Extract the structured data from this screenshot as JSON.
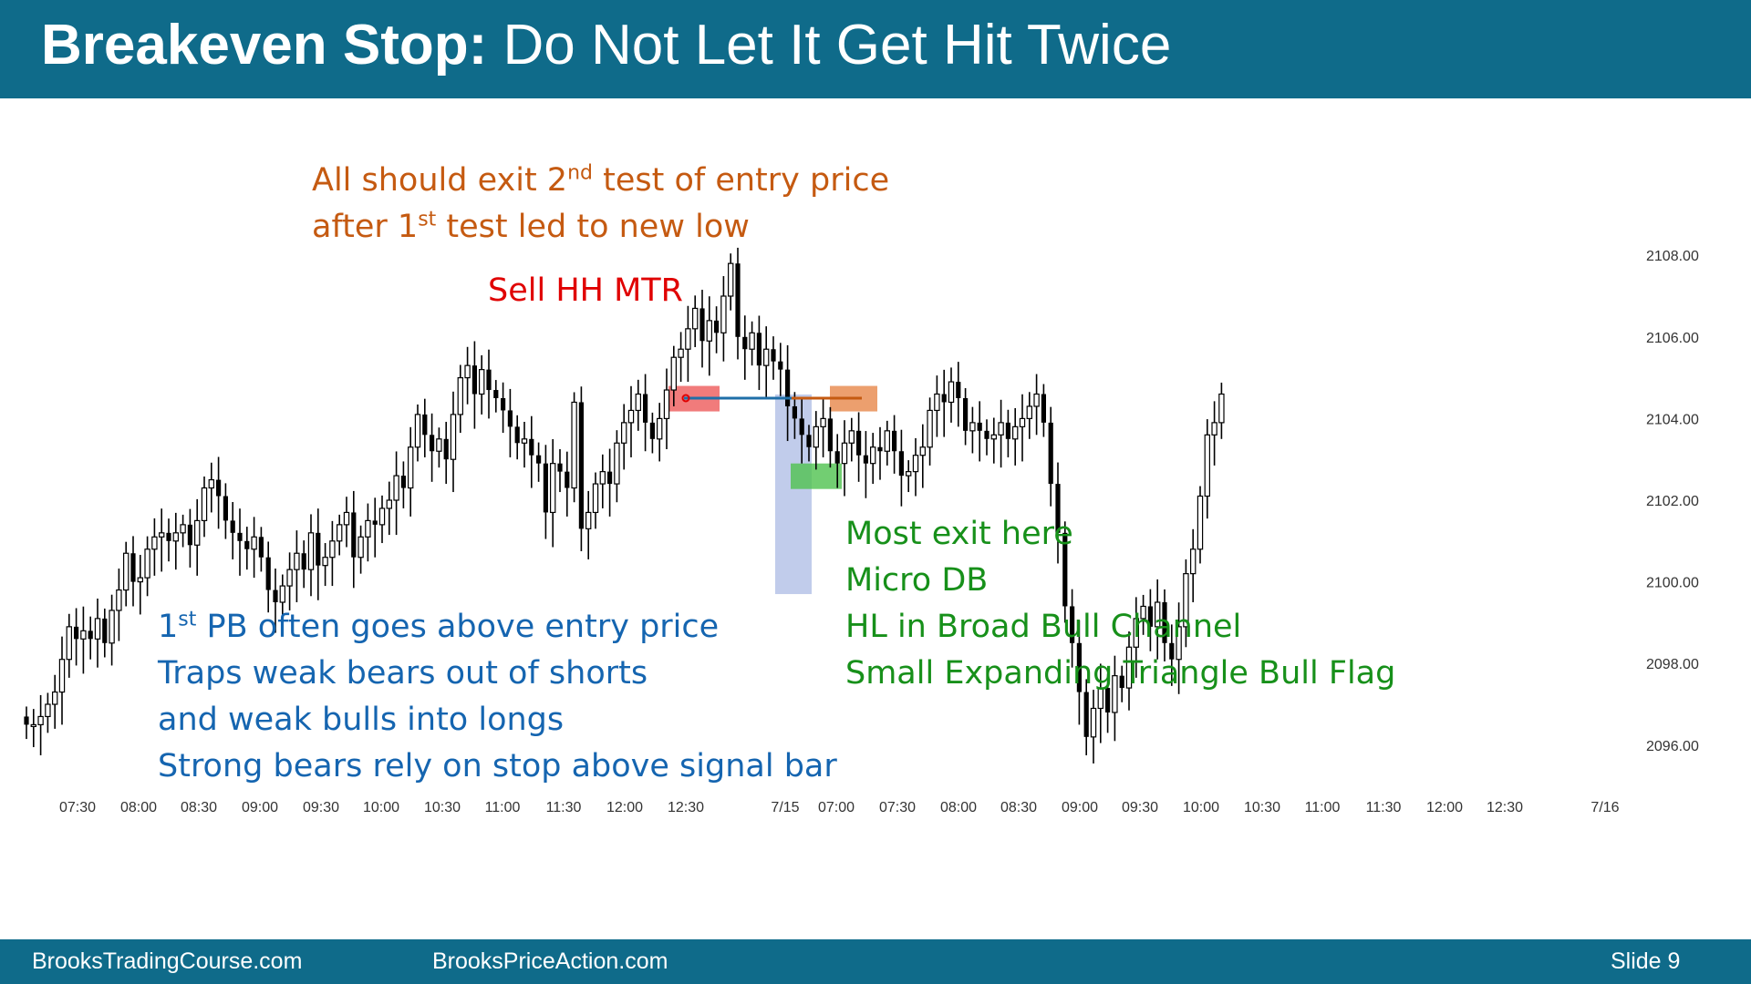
{
  "slide": {
    "title_bold": "Breakeven Stop:",
    "title_rest": "Do Not Let It Get Hit Twice",
    "footer_left": "BrooksTradingCourse.com",
    "footer_mid": "BrooksPriceAction.com",
    "footer_slide": "Slide  9"
  },
  "annotations": {
    "orange": {
      "line1_pre": "All should exit 2",
      "line1_sup": "nd",
      "line1_post": " test of entry price",
      "line2_pre": "after 1",
      "line2_sup": "st",
      "line2_post": " test led to new low"
    },
    "red": "Sell HH MTR",
    "blue": {
      "line1_pre": "1",
      "line1_sup": "st",
      "line1_post": " PB often goes above entry  price",
      "line2": "Traps weak bears out of shorts",
      "line3": "and weak bulls into longs",
      "line4": "Strong bears rely on stop above signal bar"
    },
    "green": {
      "line1": "Most exit here",
      "line2": "Micro DB",
      "line3": "HL in Broad Bull Channel",
      "line4": "Small Expanding Triangle Bull Flag"
    }
  },
  "colors": {
    "header_bg": "#0f6b8a",
    "orange": "#c55a11",
    "red": "#e00000",
    "blue": "#1565b0",
    "green": "#17901a",
    "entry_line": "#1f6fa8"
  },
  "chart_data": {
    "type": "candlestick",
    "y_ticks": [
      "2108.00",
      "2106.00",
      "2104.00",
      "2102.00",
      "2100.00",
      "2098.00",
      "2096.00"
    ],
    "ylim": [
      2094.5,
      2109.5
    ],
    "x_ticks": [
      "07:30",
      "08:00",
      "08:30",
      "09:00",
      "09:30",
      "10:00",
      "10:30",
      "11:00",
      "11:30",
      "12:00",
      "12:30",
      "7/15",
      "07:00",
      "07:30",
      "08:00",
      "08:30",
      "09:00",
      "09:30",
      "10:00",
      "10:30",
      "11:00",
      "11:30",
      "12:00",
      "12:30",
      "7/16"
    ],
    "entry_price": 2104.5,
    "closes": [
      2096.5,
      2096.5,
      2096.7,
      2097.0,
      2097.3,
      2098.1,
      2098.9,
      2098.6,
      2098.8,
      2098.6,
      2099.1,
      2098.5,
      2099.3,
      2099.8,
      2100.7,
      2100.0,
      2100.1,
      2100.8,
      2101.1,
      2101.2,
      2101.0,
      2101.2,
      2101.4,
      2100.9,
      2101.5,
      2102.3,
      2102.5,
      2102.1,
      2101.5,
      2101.2,
      2101.0,
      2100.8,
      2101.1,
      2100.6,
      2099.8,
      2099.5,
      2099.9,
      2100.3,
      2100.7,
      2100.3,
      2101.2,
      2100.4,
      2100.6,
      2101.0,
      2101.4,
      2101.7,
      2100.6,
      2101.1,
      2101.5,
      2101.4,
      2101.8,
      2102.0,
      2102.6,
      2102.3,
      2103.3,
      2104.1,
      2103.6,
      2103.2,
      2103.5,
      2103.0,
      2104.1,
      2105.0,
      2105.3,
      2104.6,
      2105.2,
      2104.7,
      2104.5,
      2104.2,
      2103.8,
      2103.4,
      2103.5,
      2103.1,
      2102.9,
      2101.7,
      2102.9,
      2102.7,
      2102.3,
      2104.4,
      2101.3,
      2101.7,
      2102.4,
      2102.7,
      2102.4,
      2103.4,
      2103.9,
      2104.2,
      2104.6,
      2103.9,
      2103.5,
      2104.0,
      2104.7,
      2105.5,
      2105.7,
      2106.2,
      2106.7,
      2105.9,
      2106.4,
      2106.1,
      2107.0,
      2107.8,
      2106.0,
      2105.7,
      2106.1,
      2105.3,
      2105.7,
      2105.4,
      2105.2,
      2104.3,
      2104.0,
      2103.6,
      2103.3,
      2103.8,
      2104.0,
      2103.2,
      2102.9,
      2103.4,
      2103.7,
      2103.1,
      2102.9,
      2103.3,
      2103.2,
      2103.7,
      2103.2,
      2102.6,
      2102.7,
      2103.1,
      2103.3,
      2104.2,
      2104.6,
      2104.4,
      2104.9,
      2104.5,
      2103.7,
      2103.9,
      2103.7,
      2103.5,
      2103.6,
      2103.9,
      2103.5,
      2103.8,
      2104.0,
      2104.3,
      2104.6,
      2103.9,
      2102.4,
      2101.2,
      2099.4,
      2098.5,
      2097.3,
      2096.2,
      2096.9,
      2097.4,
      2096.8,
      2097.7,
      2097.4,
      2098.4,
      2099.1,
      2099.4,
      2098.9,
      2099.5,
      2098.5,
      2098.1,
      2098.9,
      2100.2,
      2100.8,
      2102.1,
      2103.6,
      2103.9,
      2104.6
    ]
  }
}
